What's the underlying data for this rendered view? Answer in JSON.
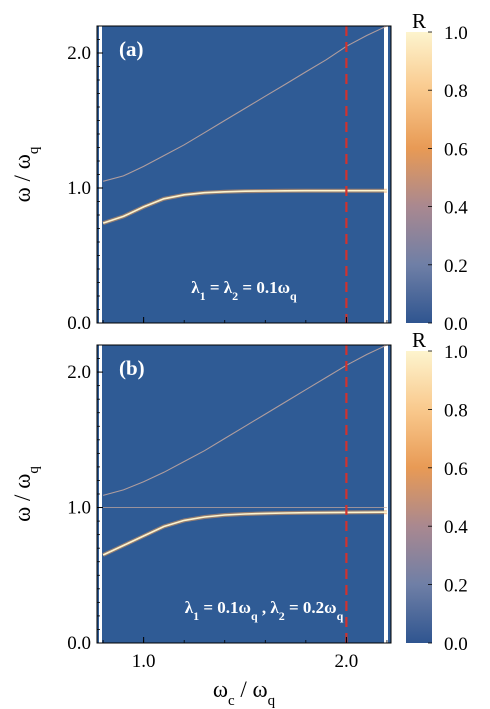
{
  "chart_data": [
    {
      "type": "heatmap",
      "panel_label": "(a)",
      "annotation_parts": [
        "λ",
        "1",
        " = λ",
        "2",
        " = 0.1ω",
        "q"
      ],
      "xlabel_parts": [
        "ω",
        "c",
        " / ω",
        "q"
      ],
      "ylabel_parts": [
        "ω / ω",
        "q"
      ],
      "xlim": [
        0.77,
        2.22
      ],
      "ylim": [
        0.0,
        2.2
      ],
      "x_ticks": [
        1.0,
        2.0
      ],
      "x_tick_labels": [],
      "y_ticks": [
        0.0,
        1.0,
        2.0
      ],
      "y_tick_labels": [
        "0.0",
        "1.0",
        "2.0"
      ],
      "marker_line_x": 2.0,
      "colorbar": {
        "label": "R",
        "range": [
          0.0,
          1.0
        ],
        "ticks": [
          "0.0",
          "0.2",
          "0.4",
          "0.6",
          "0.8",
          "1.0"
        ]
      },
      "branches": [
        {
          "name": "upper",
          "x": [
            0.8,
            0.9,
            1.0,
            1.1,
            1.2,
            1.3,
            1.4,
            1.5,
            1.6,
            1.7,
            1.8,
            1.9,
            2.0,
            2.1,
            2.2
          ],
          "y": [
            1.05,
            1.09,
            1.16,
            1.24,
            1.32,
            1.41,
            1.5,
            1.59,
            1.68,
            1.77,
            1.86,
            1.95,
            2.05,
            2.13,
            2.2
          ]
        },
        {
          "name": "lower",
          "x": [
            0.8,
            0.9,
            1.0,
            1.1,
            1.2,
            1.3,
            1.4,
            1.5,
            1.6,
            1.7,
            1.8,
            1.9,
            2.0,
            2.1,
            2.2
          ],
          "y": [
            0.74,
            0.79,
            0.86,
            0.92,
            0.95,
            0.965,
            0.972,
            0.976,
            0.978,
            0.979,
            0.98,
            0.98,
            0.98,
            0.98,
            0.98
          ]
        }
      ]
    },
    {
      "type": "heatmap",
      "panel_label": "(b)",
      "annotation_parts": [
        "λ",
        "1",
        " = 0.1ω",
        "q",
        " , λ",
        "2",
        " = 0.2ω",
        "q"
      ],
      "xlabel_parts": [
        "ω",
        "c",
        " / ω",
        "q"
      ],
      "ylabel_parts": [
        "ω / ω",
        "q"
      ],
      "xlim": [
        0.77,
        2.22
      ],
      "ylim": [
        0.0,
        2.2
      ],
      "x_ticks": [
        1.0,
        2.0
      ],
      "x_tick_labels": [
        "1.0",
        "2.0"
      ],
      "y_ticks": [
        0.0,
        1.0,
        2.0
      ],
      "y_tick_labels": [
        "0.0",
        "1.0",
        "2.0"
      ],
      "marker_line_x": 2.0,
      "colorbar": {
        "label": "R",
        "range": [
          0.0,
          1.0
        ],
        "ticks": [
          "0.0",
          "0.2",
          "0.4",
          "0.6",
          "0.8",
          "1.0"
        ]
      },
      "branches": [
        {
          "name": "upper",
          "x": [
            0.8,
            0.9,
            1.0,
            1.1,
            1.2,
            1.3,
            1.4,
            1.5,
            1.6,
            1.7,
            1.8,
            1.9,
            2.0,
            2.1,
            2.2
          ],
          "y": [
            1.09,
            1.13,
            1.19,
            1.26,
            1.34,
            1.42,
            1.51,
            1.6,
            1.69,
            1.78,
            1.87,
            1.96,
            2.05,
            2.13,
            2.2
          ]
        },
        {
          "name": "middle",
          "x": [
            0.8,
            0.9,
            1.0,
            1.1,
            1.2,
            1.3,
            1.4,
            1.5,
            1.6,
            1.7,
            1.8,
            1.9,
            2.0,
            2.1,
            2.2
          ],
          "y": [
            1.0,
            1.0,
            1.0,
            1.0,
            1.0,
            1.0,
            1.0,
            1.0,
            1.0,
            1.0,
            1.0,
            1.0,
            1.0,
            1.0,
            1.0
          ]
        },
        {
          "name": "lower",
          "x": [
            0.8,
            0.9,
            1.0,
            1.1,
            1.2,
            1.3,
            1.4,
            1.5,
            1.6,
            1.7,
            1.8,
            1.9,
            2.0,
            2.1,
            2.2
          ],
          "y": [
            0.65,
            0.72,
            0.79,
            0.86,
            0.905,
            0.93,
            0.945,
            0.952,
            0.957,
            0.96,
            0.962,
            0.963,
            0.964,
            0.965,
            0.966
          ]
        }
      ]
    }
  ],
  "colors": {
    "background": "#2f5b95",
    "marker_line": "#d2322d",
    "colormap": [
      "#2f5590",
      "#6f7fa6",
      "#a98890",
      "#e89a55",
      "#f9c98d",
      "#fdf4ce"
    ]
  }
}
